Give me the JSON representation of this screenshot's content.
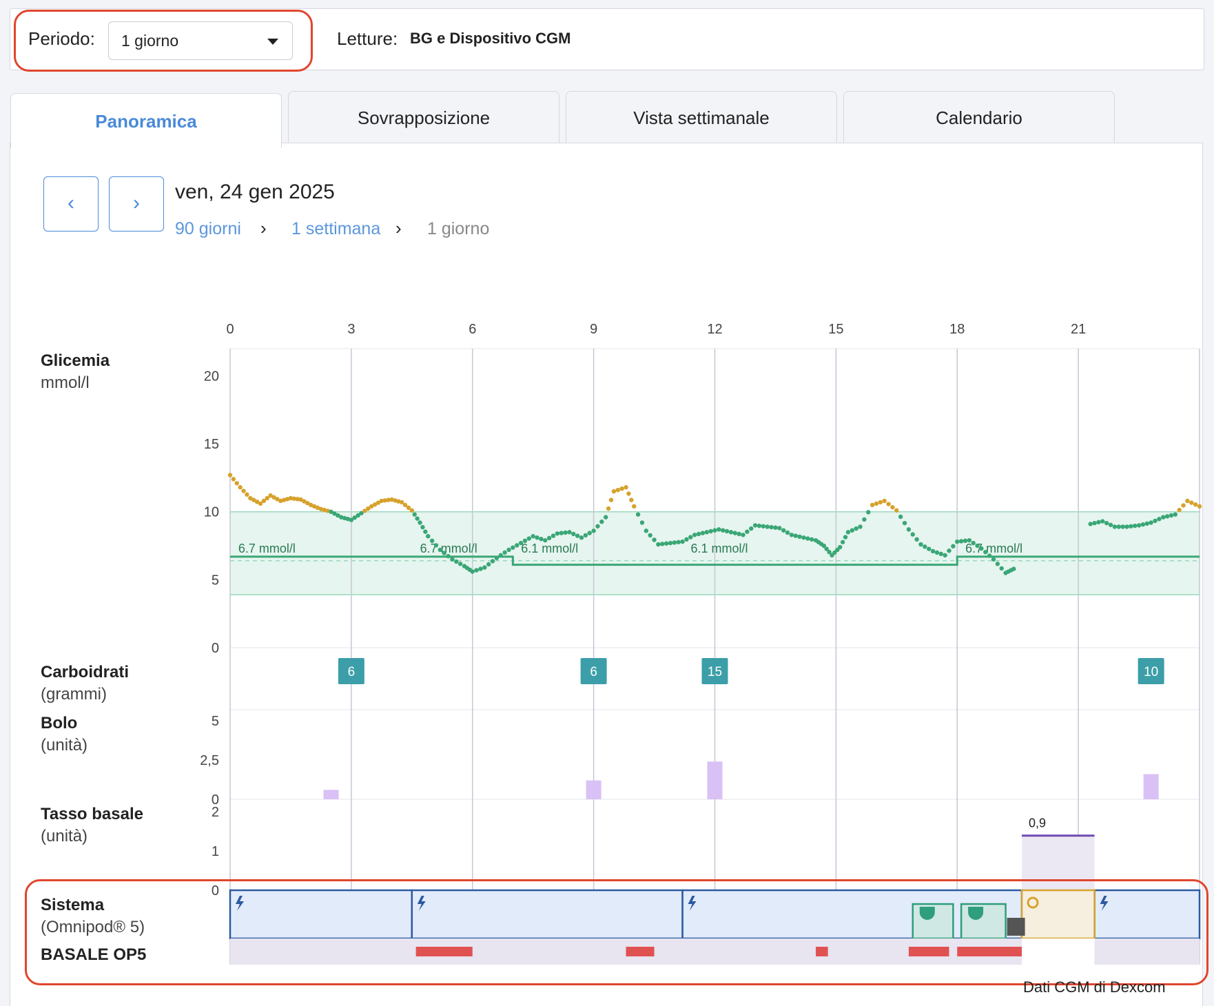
{
  "filters": {
    "period_label": "Periodo:",
    "period_value": "1 giorno",
    "readings_label": "Letture:",
    "readings_value": "BG e Dispositivo CGM"
  },
  "tabs": [
    {
      "label": "Panoramica",
      "active": true
    },
    {
      "label": "Sovrapposizione",
      "active": false
    },
    {
      "label": "Vista settimanale",
      "active": false
    },
    {
      "label": "Calendario",
      "active": false
    }
  ],
  "nav": {
    "prev_icon": "chevron-left-icon",
    "next_icon": "chevron-right-icon",
    "date": "ven, 24 gen 2025",
    "breadcrumb": [
      "90 giorni",
      "1 settimana",
      "1 giorno"
    ]
  },
  "rows": {
    "glucose": {
      "title": "Glicemia",
      "unit": "mmol/l"
    },
    "carbs": {
      "title": "Carboidrati",
      "unit": "(grammi)"
    },
    "bolus": {
      "title": "Bolo",
      "unit": "(unità)"
    },
    "basal": {
      "title": "Tasso basale",
      "unit": "(unità)"
    },
    "system": {
      "title": "Sistema",
      "unit": "(Omnipod® 5)",
      "extra": "BASALE OP5"
    }
  },
  "footer": {
    "credit": "Dati CGM di Dexcom"
  },
  "colors": {
    "in_range": "#3aa676",
    "high": "#d6a22c",
    "target_band": "#e6f5ef",
    "carb": "#3c9ea8",
    "bolus": "#d9c1f5",
    "system": "#2c5aa0",
    "alert": "#e05252"
  },
  "chart_data": {
    "type": "scatter",
    "x_ticks": [
      "0",
      "3",
      "6",
      "9",
      "12",
      "15",
      "18",
      "21"
    ],
    "xlim": [
      0,
      24
    ],
    "glucose": {
      "ylim": [
        0,
        22
      ],
      "y_ticks": [
        "20",
        "15",
        "10",
        "5",
        "0"
      ],
      "target_range": [
        3.9,
        10
      ],
      "high_threshold": 10,
      "points": [
        [
          0,
          12.7
        ],
        [
          0.25,
          11.8
        ],
        [
          0.5,
          11
        ],
        [
          0.75,
          10.6
        ],
        [
          1,
          11.2
        ],
        [
          1.25,
          10.8
        ],
        [
          1.5,
          11
        ],
        [
          1.75,
          10.9
        ],
        [
          2,
          10.5
        ],
        [
          2.25,
          10.2
        ],
        [
          2.5,
          10
        ],
        [
          2.75,
          9.6
        ],
        [
          3,
          9.4
        ],
        [
          3.25,
          9.9
        ],
        [
          3.5,
          10.4
        ],
        [
          3.75,
          10.8
        ],
        [
          4,
          10.9
        ],
        [
          4.25,
          10.7
        ],
        [
          4.5,
          10.1
        ],
        [
          4.7,
          9.2
        ],
        [
          4.9,
          8.2
        ],
        [
          5.2,
          7.2
        ],
        [
          5.5,
          6.5
        ],
        [
          5.8,
          6
        ],
        [
          6,
          5.6
        ],
        [
          6.3,
          5.9
        ],
        [
          6.6,
          6.6
        ],
        [
          6.9,
          7.2
        ],
        [
          7.2,
          7.7
        ],
        [
          7.5,
          8.2
        ],
        [
          7.8,
          7.9
        ],
        [
          8.1,
          8.4
        ],
        [
          8.4,
          8.5
        ],
        [
          8.7,
          8.1
        ],
        [
          9,
          8.6
        ],
        [
          9.3,
          9.6
        ],
        [
          9.5,
          11.5
        ],
        [
          9.8,
          11.8
        ],
        [
          10,
          10.4
        ],
        [
          10.3,
          8.6
        ],
        [
          10.6,
          7.6
        ],
        [
          10.9,
          7.7
        ],
        [
          11.2,
          7.8
        ],
        [
          11.5,
          8.3
        ],
        [
          11.8,
          8.5
        ],
        [
          12.1,
          8.7
        ],
        [
          12.4,
          8.5
        ],
        [
          12.7,
          8.3
        ],
        [
          13,
          9
        ],
        [
          13.3,
          8.9
        ],
        [
          13.6,
          8.8
        ],
        [
          13.9,
          8.3
        ],
        [
          14.2,
          8.1
        ],
        [
          14.5,
          7.9
        ],
        [
          14.7,
          7.5
        ],
        [
          14.9,
          6.8
        ],
        [
          15.1,
          7.4
        ],
        [
          15.3,
          8.5
        ],
        [
          15.6,
          8.9
        ],
        [
          15.9,
          10.5
        ],
        [
          16.2,
          10.8
        ],
        [
          16.5,
          10.1
        ],
        [
          16.8,
          8.7
        ],
        [
          17.1,
          7.6
        ],
        [
          17.4,
          7.1
        ],
        [
          17.7,
          6.8
        ],
        [
          18,
          7.8
        ],
        [
          18.3,
          7.9
        ],
        [
          18.6,
          7.3
        ],
        [
          18.9,
          6.5
        ],
        [
          19.2,
          5.5
        ],
        [
          19.4,
          5.8
        ],
        [
          21.3,
          9.1
        ],
        [
          21.6,
          9.3
        ],
        [
          21.9,
          8.9
        ],
        [
          22.2,
          8.9
        ],
        [
          22.5,
          9
        ],
        [
          22.8,
          9.2
        ],
        [
          23.1,
          9.6
        ],
        [
          23.4,
          9.8
        ],
        [
          23.7,
          10.8
        ],
        [
          24,
          10.4
        ]
      ],
      "target_segments": [
        {
          "from": 0,
          "to": 7,
          "value": 6.7,
          "label": "6.7 mmol/l"
        },
        {
          "from": 7,
          "to": 18,
          "value": 6.1,
          "label": "6.1 mmol/l"
        },
        {
          "from": 18,
          "to": 24,
          "value": 6.7,
          "label": "6.7 mmol/l"
        }
      ],
      "target_labels": [
        {
          "x": 0.1,
          "text": "6.7 mmol/l"
        },
        {
          "x": 4.6,
          "text": "6.7 mmol/l"
        },
        {
          "x": 7.1,
          "text": "6.1 mmol/l"
        },
        {
          "x": 11.3,
          "text": "6.1 mmol/l"
        },
        {
          "x": 18.1,
          "text": "6.7 mmol/l"
        }
      ]
    },
    "carbs": [
      {
        "x": 3.0,
        "value": "6"
      },
      {
        "x": 9.0,
        "value": "6"
      },
      {
        "x": 12.0,
        "value": "15"
      },
      {
        "x": 22.8,
        "value": "10"
      }
    ],
    "bolus": {
      "y_ticks": [
        "5",
        "2,5",
        "0"
      ],
      "ymax": 5,
      "values": [
        {
          "x": 2.5,
          "u": 0.6
        },
        {
          "x": 9.0,
          "u": 1.2
        },
        {
          "x": 12.0,
          "u": 2.4
        },
        {
          "x": 22.8,
          "u": 1.6
        }
      ]
    },
    "basal": {
      "y_ticks": [
        "2",
        "1",
        "0"
      ],
      "ymax": 2,
      "segments": [
        {
          "from": 19.6,
          "to": 21.4,
          "rate": 0.9,
          "label": "0,9"
        }
      ]
    },
    "system": {
      "auto_segments": [
        [
          0,
          4.5
        ],
        [
          4.5,
          11.2
        ],
        [
          11.2,
          19.6
        ],
        [
          21.4,
          24
        ]
      ],
      "manual_segment": [
        19.6,
        21.4
      ],
      "pod_events": [
        [
          16.9,
          17.9
        ],
        [
          18.1,
          19.2
        ]
      ],
      "alerts": [
        [
          4.6,
          6.0
        ],
        [
          9.8,
          10.5
        ],
        [
          14.5,
          14.8
        ],
        [
          16.8,
          17.8
        ],
        [
          18.0,
          19.6
        ]
      ],
      "icons": [
        "lightning-icon",
        "pod-icon",
        "manual-mode-icon",
        "gear-icon"
      ]
    }
  }
}
